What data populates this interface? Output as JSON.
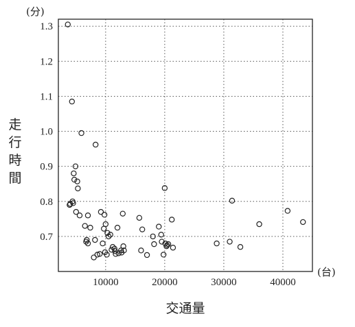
{
  "chart_data": {
    "type": "scatter",
    "title": "",
    "xlabel": "交通量",
    "ylabel": "走行時間",
    "x_unit": "(台)",
    "y_unit": "(分)",
    "xlim": [
      2000,
      45000
    ],
    "ylim": [
      0.6,
      1.32
    ],
    "xticks": [
      10000,
      20000,
      30000,
      40000
    ],
    "yticks": [
      0.7,
      0.8,
      0.9,
      1.0,
      1.1,
      1.2,
      1.3
    ],
    "grid": true,
    "series": [
      {
        "x": [
          3600,
          4300,
          5900,
          8300,
          20000,
          31400,
          40800,
          43400,
          36000,
          4600,
          4900,
          5200,
          5300,
          4700,
          4400,
          4000,
          4500,
          3900,
          5000,
          5600,
          7000,
          6500,
          7400,
          6800,
          9200,
          9800,
          10000,
          9700,
          10500,
          10300,
          10800,
          11200,
          8000,
          8200,
          9500,
          9000,
          12000,
          12900,
          13000,
          12200,
          12600,
          11700,
          11500,
          11000,
          10200,
          9900,
          15700,
          16200,
          16000,
          17000,
          18000,
          18200,
          19000,
          19400,
          19500,
          19800,
          20100,
          20400,
          20600,
          20300,
          21200,
          21400,
          28800,
          31000,
          32800,
          6700,
          7000,
          12700,
          8600,
          11600,
          13100
        ],
        "y": [
          1.305,
          1.085,
          0.995,
          0.962,
          0.838,
          0.802,
          0.773,
          0.741,
          0.735,
          0.88,
          0.9,
          0.857,
          0.837,
          0.862,
          0.8,
          0.793,
          0.795,
          0.79,
          0.77,
          0.76,
          0.76,
          0.73,
          0.725,
          0.69,
          0.77,
          0.762,
          0.735,
          0.722,
          0.7,
          0.71,
          0.705,
          0.67,
          0.64,
          0.69,
          0.68,
          0.65,
          0.725,
          0.765,
          0.672,
          0.652,
          0.66,
          0.65,
          0.665,
          0.662,
          0.648,
          0.655,
          0.753,
          0.72,
          0.66,
          0.647,
          0.7,
          0.678,
          0.728,
          0.705,
          0.685,
          0.648,
          0.68,
          0.675,
          0.678,
          0.672,
          0.748,
          0.668,
          0.68,
          0.685,
          0.67,
          0.685,
          0.68,
          0.654,
          0.648,
          0.658,
          0.66
        ]
      }
    ]
  }
}
